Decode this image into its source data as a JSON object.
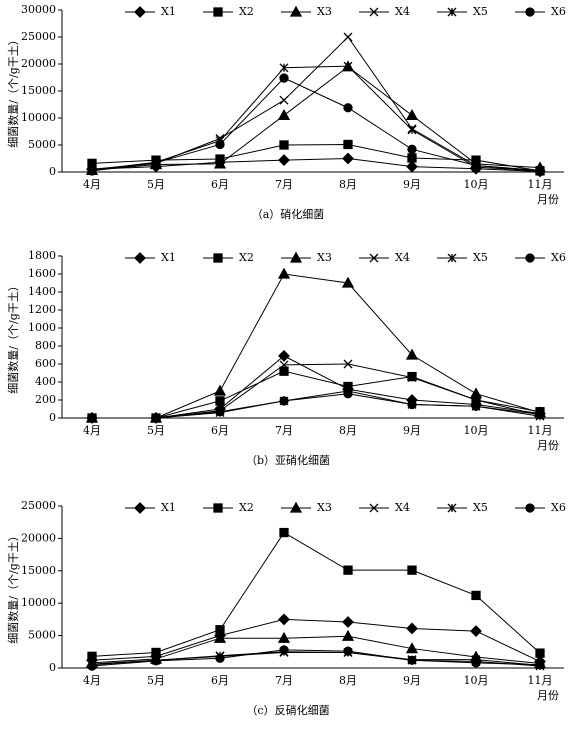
{
  "chart_data": [
    {
      "type": "line",
      "title": "（a）硝化细菌",
      "y_label": "细菌数量/（个/g干土）",
      "x_label": "月份",
      "categories": [
        "4月",
        "5月",
        "6月",
        "7月",
        "8月",
        "9月",
        "10月",
        "11月"
      ],
      "ylim": [
        0,
        30000
      ],
      "yticks": [
        0,
        5000,
        10000,
        15000,
        20000,
        25000,
        30000
      ],
      "series": [
        {
          "name": "X1",
          "color": "#000000",
          "marker": "diamond",
          "values": [
            500,
            1000,
            1800,
            2200,
            2500,
            1000,
            600,
            100
          ]
        },
        {
          "name": "X2",
          "color": "#000000",
          "marker": "square",
          "values": [
            1600,
            2200,
            2400,
            5000,
            5100,
            2600,
            2200,
            200
          ]
        },
        {
          "name": "X3",
          "color": "#000000",
          "marker": "triangle",
          "values": [
            300,
            1400,
            1500,
            10500,
            19500,
            10500,
            1500,
            800
          ]
        },
        {
          "name": "X4",
          "color": "#000000",
          "marker": "x",
          "values": [
            500,
            1600,
            6200,
            13300,
            25000,
            8000,
            1200,
            300
          ]
        },
        {
          "name": "X5",
          "color": "#000000",
          "marker": "asterisk",
          "values": [
            400,
            1800,
            5800,
            19300,
            19600,
            7800,
            900,
            200
          ]
        },
        {
          "name": "X6",
          "color": "#000000",
          "marker": "circle",
          "values": [
            200,
            1700,
            5100,
            17400,
            11900,
            4200,
            1200,
            100
          ]
        }
      ]
    },
    {
      "type": "line",
      "title": "（b）亚硝化细菌",
      "y_label": "细菌数量/（个/g干土）",
      "x_label": "月份",
      "categories": [
        "4月",
        "5月",
        "6月",
        "7月",
        "8月",
        "9月",
        "10月",
        "11月"
      ],
      "ylim": [
        0,
        1800
      ],
      "yticks": [
        0,
        200,
        400,
        600,
        800,
        1000,
        1200,
        1400,
        1600,
        1800
      ],
      "series": [
        {
          "name": "X1",
          "color": "#000000",
          "marker": "diamond",
          "values": [
            0,
            0,
            100,
            690,
            320,
            200,
            150,
            50
          ]
        },
        {
          "name": "X2",
          "color": "#000000",
          "marker": "square",
          "values": [
            0,
            0,
            190,
            520,
            350,
            460,
            200,
            70
          ]
        },
        {
          "name": "X3",
          "color": "#000000",
          "marker": "triangle",
          "values": [
            0,
            0,
            300,
            1600,
            1500,
            700,
            270,
            60
          ]
        },
        {
          "name": "X4",
          "color": "#000000",
          "marker": "x",
          "values": [
            0,
            0,
            80,
            590,
            600,
            450,
            200,
            30
          ]
        },
        {
          "name": "X5",
          "color": "#000000",
          "marker": "asterisk",
          "values": [
            0,
            0,
            60,
            190,
            300,
            150,
            130,
            20
          ]
        },
        {
          "name": "X6",
          "color": "#000000",
          "marker": "circle",
          "values": [
            0,
            0,
            70,
            190,
            270,
            150,
            130,
            40
          ]
        }
      ]
    },
    {
      "type": "line",
      "title": "（c）反硝化细菌",
      "y_label": "细菌数量/（个/g干土）",
      "x_label": "月份",
      "categories": [
        "4月",
        "5月",
        "6月",
        "7月",
        "8月",
        "9月",
        "10月",
        "11月"
      ],
      "ylim": [
        0,
        25000
      ],
      "yticks": [
        0,
        5000,
        10000,
        15000,
        20000,
        25000
      ],
      "series": [
        {
          "name": "X1",
          "color": "#000000",
          "marker": "diamond",
          "values": [
            1200,
            1800,
            5000,
            7500,
            7100,
            6100,
            5700,
            1000
          ]
        },
        {
          "name": "X2",
          "color": "#000000",
          "marker": "square",
          "values": [
            1800,
            2400,
            5900,
            20900,
            15100,
            15100,
            11200,
            2300
          ]
        },
        {
          "name": "X3",
          "color": "#000000",
          "marker": "triangle",
          "values": [
            800,
            1400,
            4600,
            4600,
            4900,
            3000,
            1700,
            700
          ]
        },
        {
          "name": "X4",
          "color": "#000000",
          "marker": "x",
          "values": [
            500,
            1200,
            1800,
            2400,
            2400,
            1300,
            1300,
            400
          ]
        },
        {
          "name": "X5",
          "color": "#000000",
          "marker": "asterisk",
          "values": [
            600,
            1200,
            1900,
            2500,
            2400,
            1200,
            1000,
            300
          ]
        },
        {
          "name": "X6",
          "color": "#000000",
          "marker": "circle",
          "values": [
            300,
            1100,
            1500,
            2800,
            2600,
            1200,
            800,
            500
          ]
        }
      ]
    }
  ]
}
